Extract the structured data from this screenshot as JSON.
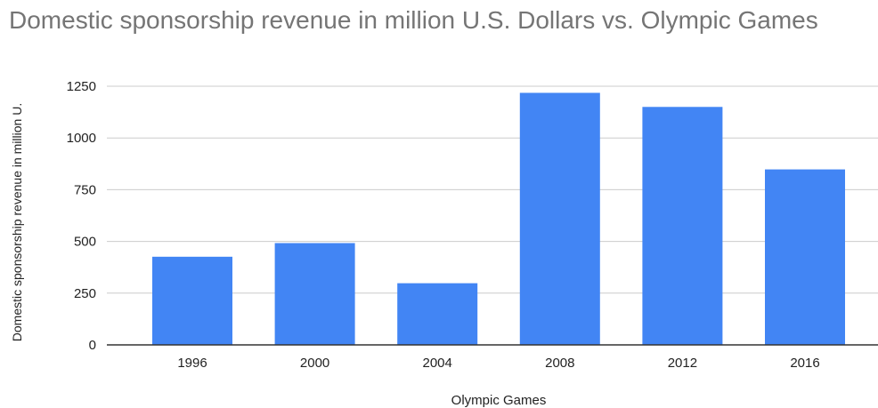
{
  "chart_data": {
    "type": "bar",
    "title": "Domestic sponsorship revenue in million U.S. Dollars vs. Olympic Games",
    "xlabel": "Olympic Games",
    "ylabel": "Domestic sponsorship revenue in million U.",
    "categories": [
      "1996",
      "2000",
      "2004",
      "2008",
      "2012",
      "2016"
    ],
    "values": [
      426,
      492,
      298,
      1218,
      1150,
      848
    ],
    "ylim": [
      0,
      1250
    ],
    "yticks": [
      "0",
      "250",
      "500",
      "750",
      "1000",
      "1250"
    ],
    "grid": true,
    "bar_color": "#4285f4"
  }
}
